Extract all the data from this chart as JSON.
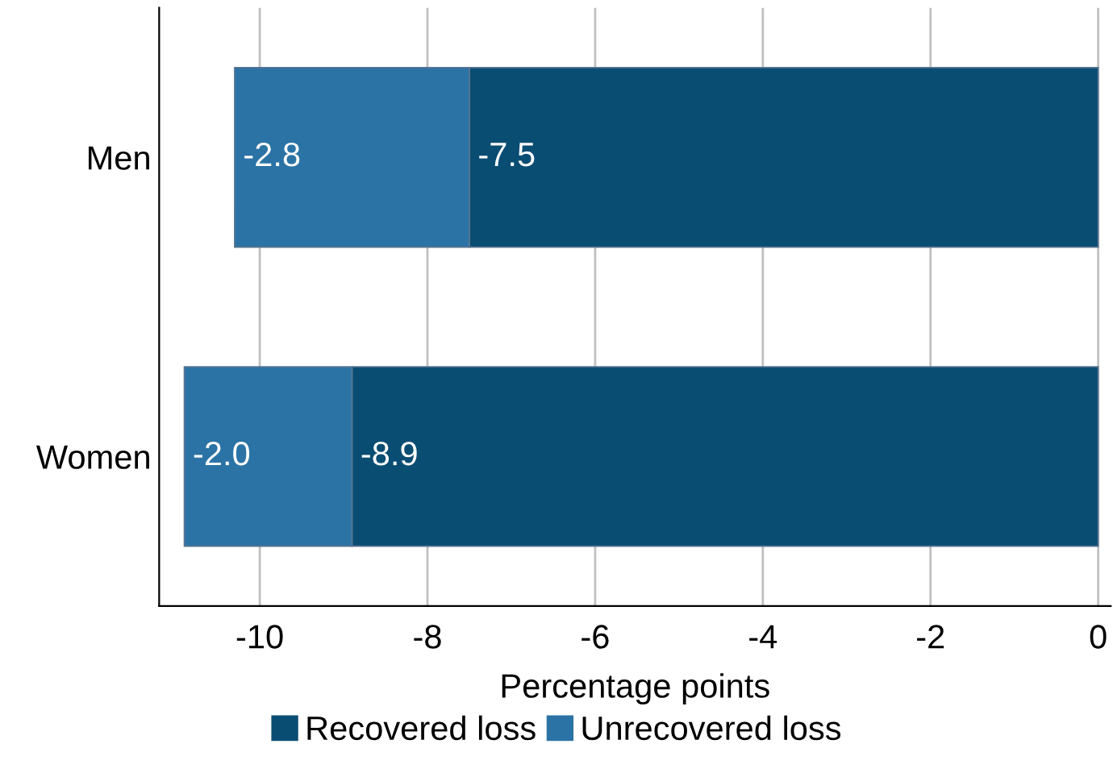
{
  "chart_data": {
    "type": "bar",
    "orientation": "horizontal",
    "stacked": true,
    "categories": [
      "Men",
      "Women"
    ],
    "series": [
      {
        "name": "Recovered loss",
        "color": "#0a4d73",
        "values": [
          -7.5,
          -8.9
        ],
        "value_labels": [
          "-7.5",
          "-8.9"
        ]
      },
      {
        "name": "Unrecovered loss",
        "color": "#2b73a5",
        "values": [
          -2.8,
          -2.0
        ],
        "value_labels": [
          "-2.8",
          "-2.0"
        ]
      }
    ],
    "xlabel": "Percentage points",
    "xlim": [
      -11.2,
      0.15
    ],
    "xticks": [
      -10,
      -8,
      -6,
      -4,
      -2,
      0
    ],
    "grid": "x",
    "legend": "bottom"
  }
}
